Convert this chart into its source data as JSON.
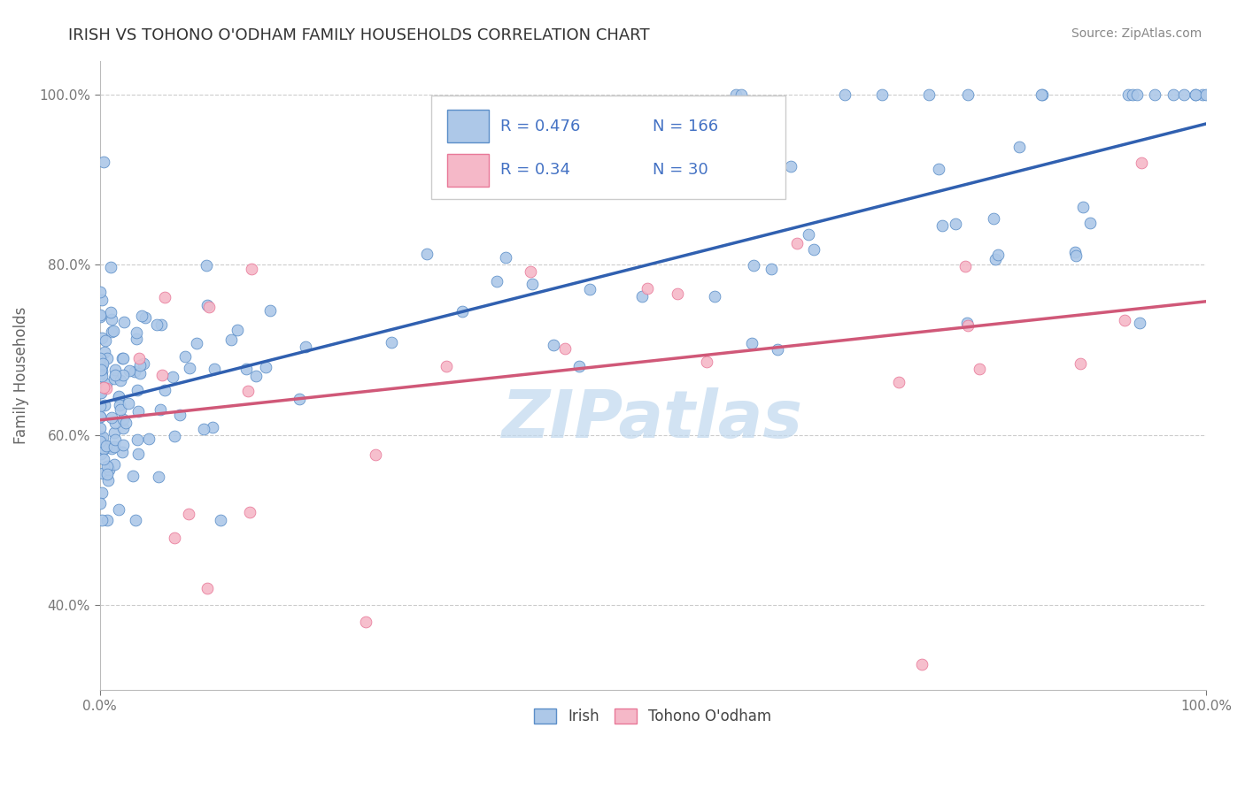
{
  "title": "IRISH VS TOHONO O'ODHAM FAMILY HOUSEHOLDS CORRELATION CHART",
  "source": "Source: ZipAtlas.com",
  "ylabel": "Family Households",
  "xlim": [
    0.0,
    1.0
  ],
  "ylim": [
    0.3,
    1.04
  ],
  "yticks": [
    0.4,
    0.6,
    0.8,
    1.0
  ],
  "ytick_labels": [
    "40.0%",
    "60.0%",
    "80.0%",
    "100.0%"
  ],
  "xtick_labels": [
    "0.0%",
    "100.0%"
  ],
  "irish_R": 0.476,
  "irish_N": 166,
  "tohono_R": 0.34,
  "tohono_N": 30,
  "irish_color": "#adc8e8",
  "tohono_color": "#f5b8c8",
  "irish_edge_color": "#5b8ec8",
  "tohono_edge_color": "#e87898",
  "irish_line_color": "#3060b0",
  "tohono_line_color": "#d05878",
  "title_color": "#333333",
  "legend_text_color": "#4472c4",
  "watermark": "ZIPatlas",
  "watermark_color": "#c0d8ee",
  "irish_seed": 12345,
  "tohono_seed": 99
}
